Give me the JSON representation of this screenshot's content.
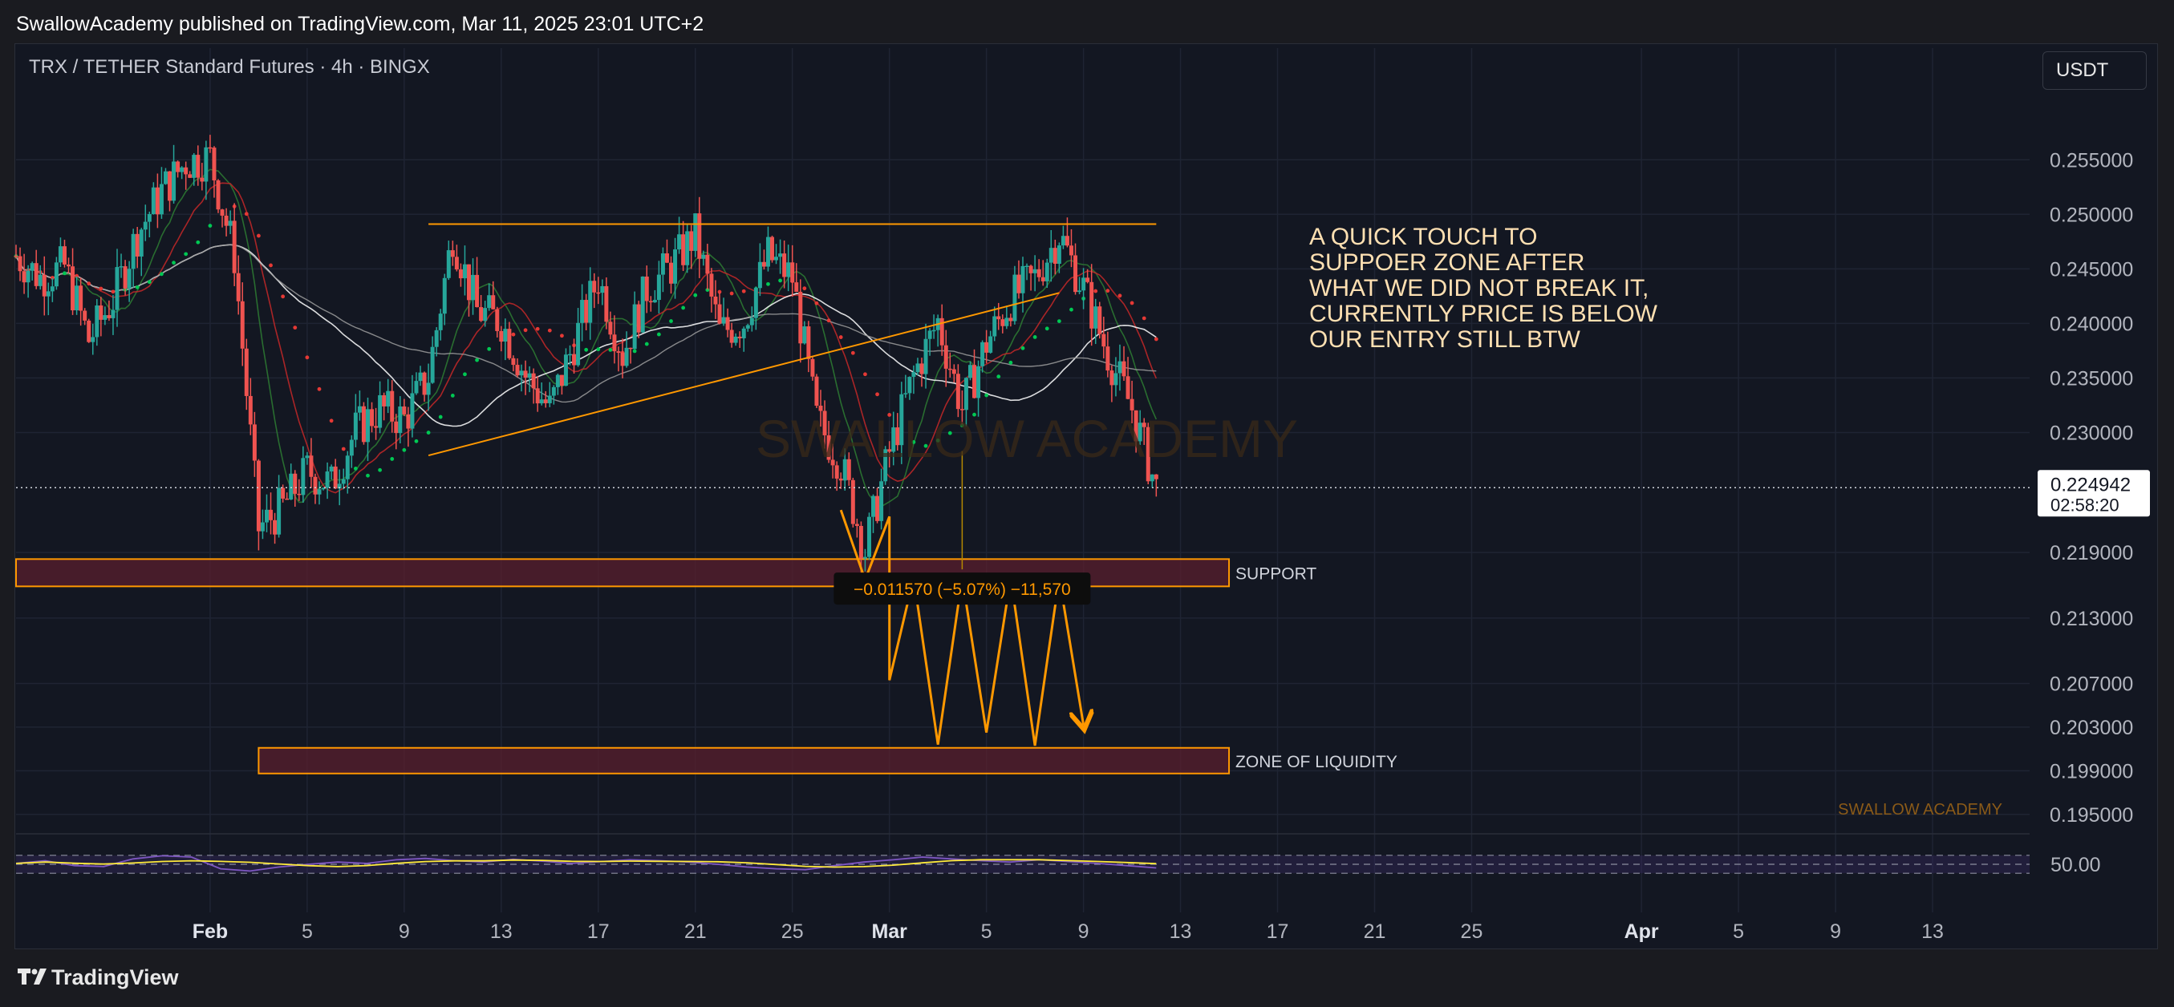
{
  "header": {
    "published": "SwallowAcademy published on TradingView.com, Mar 11, 2025 23:01 UTC+2"
  },
  "chart_header": {
    "symbol": "TRX / TETHER Standard Futures · 4h · BINGX",
    "currency": "USDT"
  },
  "footer": {
    "brand": "TradingView"
  },
  "watermarks": {
    "center": "SWALLOW ACADEMY",
    "corner": "SWALLOW ACADEMY"
  },
  "colors": {
    "background": "#131722",
    "up": "#26a69a",
    "down": "#ef5350",
    "zone_border": "#ff9800",
    "zone_fill": "#5a1f2e",
    "note_text": "#ffe0b2",
    "rsi": "#7e57c2",
    "rsi_ma": "#ffeb3b"
  },
  "chart_data": {
    "type": "candlestick",
    "timeframe": "4h",
    "ylim": [
      0.19322,
      0.25862
    ],
    "x_range": [
      "2025-01-24",
      "2025-04-17"
    ],
    "price_ticks": [
      "0.255000",
      "0.250000",
      "0.245000",
      "0.240000",
      "0.235000",
      "0.230000",
      "0.219000",
      "0.213000",
      "0.207000",
      "0.203000",
      "0.199000",
      "0.195000"
    ],
    "price_tick_values": [
      0.255,
      0.25,
      0.245,
      0.24,
      0.235,
      0.23,
      0.219,
      0.213,
      0.207,
      0.203,
      0.199,
      0.195
    ],
    "time_ticks": [
      {
        "label": "Feb",
        "date": "2025-02-01",
        "bold": true
      },
      {
        "label": "5",
        "date": "2025-02-05",
        "bold": false
      },
      {
        "label": "9",
        "date": "2025-02-09",
        "bold": false
      },
      {
        "label": "13",
        "date": "2025-02-13",
        "bold": false
      },
      {
        "label": "17",
        "date": "2025-02-17",
        "bold": false
      },
      {
        "label": "21",
        "date": "2025-02-21",
        "bold": false
      },
      {
        "label": "25",
        "date": "2025-02-25",
        "bold": false
      },
      {
        "label": "Mar",
        "date": "2025-03-01",
        "bold": true
      },
      {
        "label": "5",
        "date": "2025-03-05",
        "bold": false
      },
      {
        "label": "9",
        "date": "2025-03-09",
        "bold": false
      },
      {
        "label": "13",
        "date": "2025-03-13",
        "bold": false
      },
      {
        "label": "17",
        "date": "2025-03-17",
        "bold": false
      },
      {
        "label": "21",
        "date": "2025-03-21",
        "bold": false
      },
      {
        "label": "25",
        "date": "2025-03-25",
        "bold": false
      },
      {
        "label": "Apr",
        "date": "2025-04-01",
        "bold": true
      },
      {
        "label": "5",
        "date": "2025-04-05",
        "bold": false
      },
      {
        "label": "9",
        "date": "2025-04-09",
        "bold": false
      },
      {
        "label": "13",
        "date": "2025-04-13",
        "bold": false
      }
    ],
    "last_price": {
      "value": 0.224942,
      "label": "0.224942",
      "countdown": "02:58:20"
    },
    "price_path": [
      [
        "2025-01-24",
        0.2462
      ],
      [
        "2025-01-25",
        0.2442
      ],
      [
        "2025-01-26",
        0.2452
      ],
      [
        "2025-01-27",
        0.2385
      ],
      [
        "2025-01-28",
        0.2422
      ],
      [
        "2025-01-29",
        0.2482
      ],
      [
        "2025-01-30",
        0.2521
      ],
      [
        "2025-01-31",
        0.2548
      ],
      [
        "2025-02-01",
        0.2552
      ],
      [
        "2025-02-02",
        0.2462
      ],
      [
        "2025-02-03",
        0.2212
      ],
      [
        "2025-02-04",
        0.2232
      ],
      [
        "2025-02-05",
        0.2265
      ],
      [
        "2025-02-06",
        0.2252
      ],
      [
        "2025-02-07",
        0.2302
      ],
      [
        "2025-02-08",
        0.2322
      ],
      [
        "2025-02-09",
        0.2312
      ],
      [
        "2025-02-10",
        0.2352
      ],
      [
        "2025-02-11",
        0.2482
      ],
      [
        "2025-02-12",
        0.2412
      ],
      [
        "2025-02-13",
        0.2402
      ],
      [
        "2025-02-14",
        0.2352
      ],
      [
        "2025-02-15",
        0.2322
      ],
      [
        "2025-02-16",
        0.2382
      ],
      [
        "2025-02-17",
        0.2442
      ],
      [
        "2025-02-18",
        0.2372
      ],
      [
        "2025-02-19",
        0.2432
      ],
      [
        "2025-02-20",
        0.2452
      ],
      [
        "2025-02-21",
        0.2482
      ],
      [
        "2025-02-22",
        0.2392
      ],
      [
        "2025-02-23",
        0.2402
      ],
      [
        "2025-02-24",
        0.2462
      ],
      [
        "2025-02-25",
        0.2442
      ],
      [
        "2025-02-26",
        0.2312
      ],
      [
        "2025-02-27",
        0.2272
      ],
      [
        "2025-02-28",
        0.2192
      ],
      [
        "2025-03-01",
        0.2282
      ],
      [
        "2025-03-02",
        0.2352
      ],
      [
        "2025-03-03",
        0.2402
      ],
      [
        "2025-03-04",
        0.2322
      ],
      [
        "2025-03-05",
        0.2382
      ],
      [
        "2025-03-06",
        0.2422
      ],
      [
        "2025-03-07",
        0.2442
      ],
      [
        "2025-03-08",
        0.2482
      ],
      [
        "2025-03-09",
        0.2432
      ],
      [
        "2025-03-10",
        0.2372
      ],
      [
        "2025-03-11",
        0.2322
      ],
      [
        "2025-03-12",
        0.2249
      ]
    ],
    "horizontal_levels": [
      {
        "name": "resistance",
        "value": 0.2491,
        "from": "2025-02-10",
        "to": "2025-03-12"
      }
    ],
    "trendlines": [
      {
        "name": "rising-support",
        "from": [
          "2025-02-10",
          0.2279
        ],
        "to": [
          "2025-03-08",
          0.2428
        ]
      }
    ],
    "zones": [
      {
        "label": "SUPPORT",
        "top": 0.2184,
        "bottom": 0.2159,
        "from": "2025-01-24",
        "to": "2025-03-15"
      },
      {
        "label": "ZONE OF LIQUIDITY",
        "top": 0.2011,
        "bottom": 0.19875,
        "from": "2025-02-03",
        "to": "2025-03-15"
      }
    ],
    "projection_path": [
      [
        "2025-02-27",
        0.2229
      ],
      [
        "2025-02-28",
        0.2165
      ],
      [
        "2025-02-29",
        0.2223
      ],
      [
        "2025-03-01",
        0.2073
      ],
      [
        "2025-03-02",
        0.2167
      ],
      [
        "2025-03-03",
        0.2014
      ],
      [
        "2025-03-04",
        0.2167
      ],
      [
        "2025-03-05",
        0.2025
      ],
      [
        "2025-03-06",
        0.2167
      ],
      [
        "2025-03-07",
        0.2013
      ],
      [
        "2025-03-08",
        0.2167
      ],
      [
        "2025-03-09",
        0.2032
      ]
    ],
    "measure": {
      "label": "−0.011570 (−5.07%) −11,570",
      "from": "2025-03-04",
      "at_price": 0.2157
    },
    "annotations": [
      {
        "text_lines": [
          "A QUICK TOUCH TO",
          "SUPPOER ZONE AFTER",
          "WHAT WE DID NOT BREAK IT,",
          "CURRENTLY PRICE IS BELOW",
          "OUR ENTRY STILL BTW"
        ]
      }
    ],
    "rsi": {
      "label": "50.00",
      "level": 50,
      "bands": [
        70,
        30
      ],
      "values": [
        52,
        58,
        47,
        45,
        62,
        69,
        66,
        40,
        35,
        44,
        50,
        55,
        52,
        60,
        63,
        58,
        55,
        61,
        57,
        52,
        56,
        60,
        58,
        55,
        50,
        44,
        40,
        38,
        47,
        55,
        60,
        66,
        62,
        58,
        55,
        60,
        56,
        52,
        47,
        42
      ]
    }
  }
}
